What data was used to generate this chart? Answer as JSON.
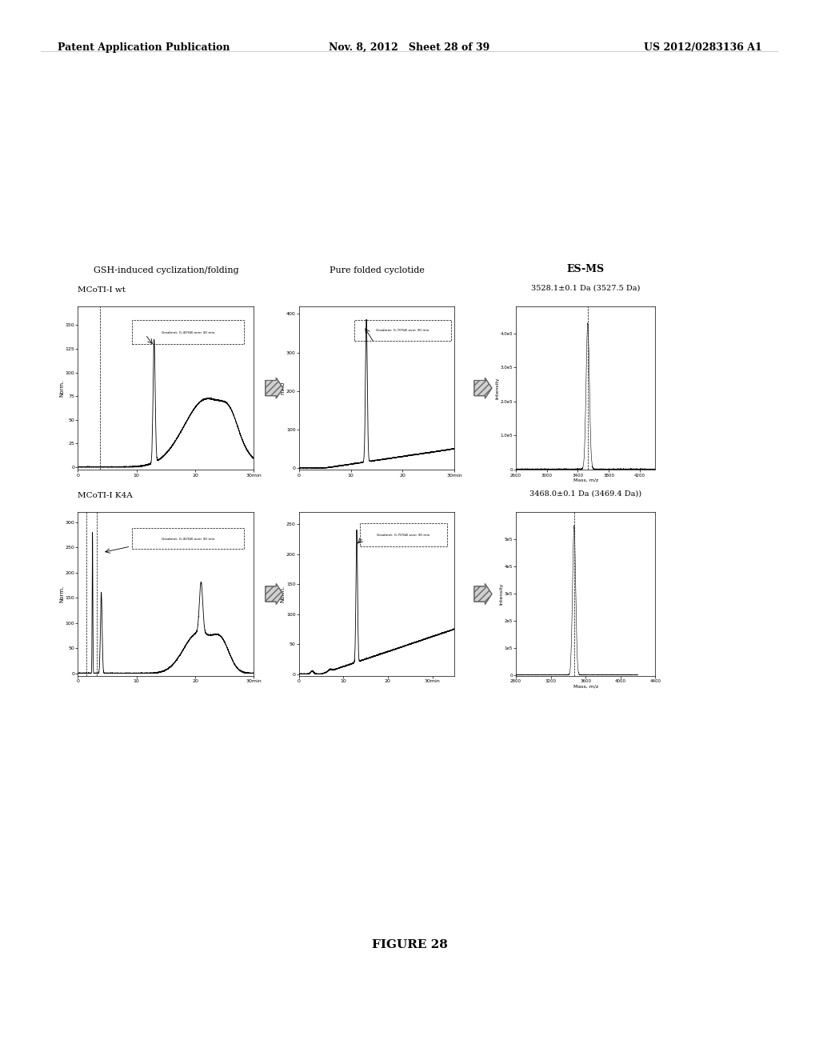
{
  "header_left": "Patent Application Publication",
  "header_center": "Nov. 8, 2012   Sheet 28 of 39",
  "header_right": "US 2012/0283136 A1",
  "figure_label": "FIGURE 28",
  "col1_title": "GSH-induced cyclization/folding",
  "col2_title": "Pure folded cyclotide",
  "col3_title": "ES-MS",
  "row1_subtitle": "MCoTI-I wt",
  "row2_subtitle": "MCoTI-I K4A",
  "row1_col1_box_text": "Gradient: 0-40%B over 30 min",
  "row1_col2_box_text": "Gradient: 0-70%B over 30 min",
  "row1_col3_title": "3528.1±0.1 Da (3527.5 Da)",
  "row2_col1_box_text": "Gradient: 0-40%B over 30 min",
  "row2_col2_box_text": "Gradient: 0-70%B over 30 min",
  "row2_col3_title": "3468.0±0.1 Da (3469.4 Da))",
  "bg_color": "#ffffff"
}
